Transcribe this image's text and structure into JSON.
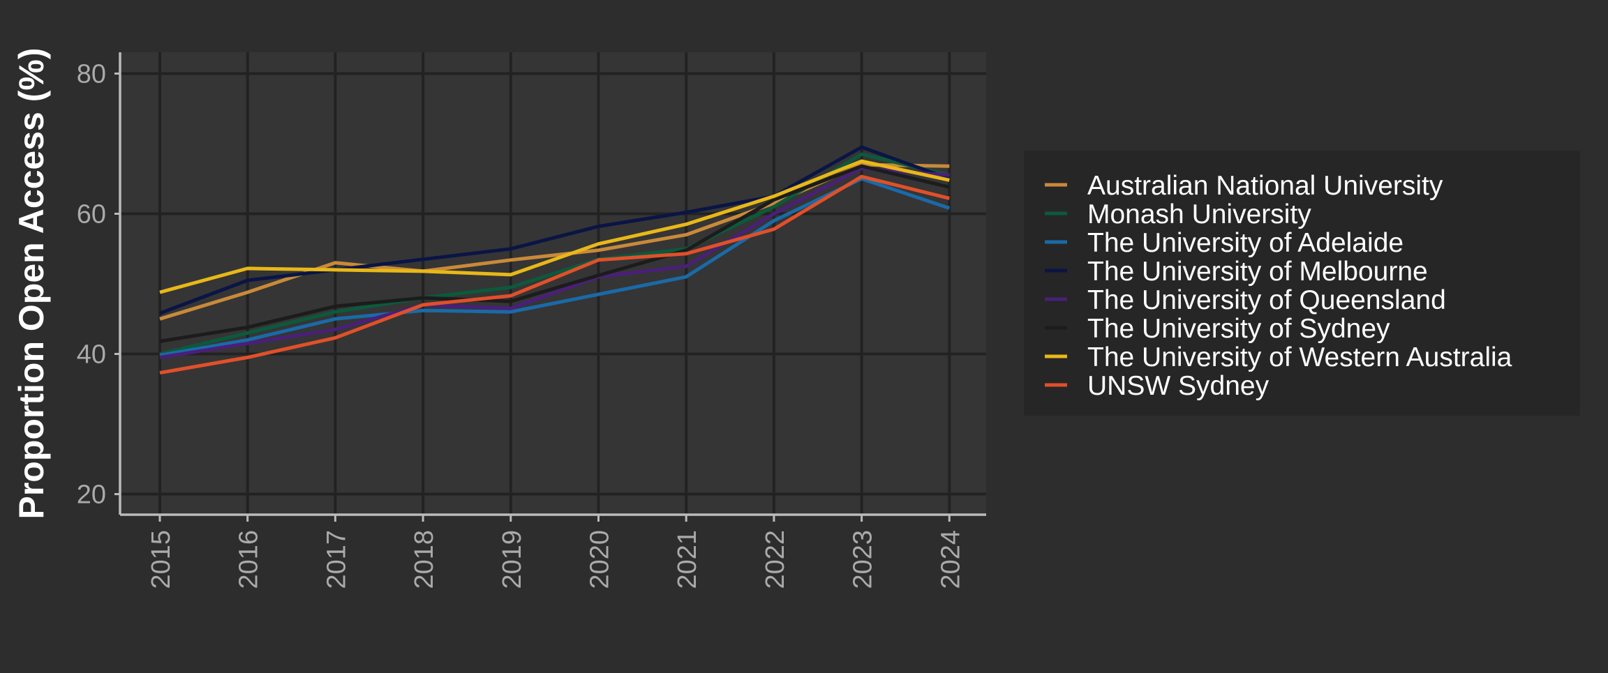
{
  "chart_data": {
    "type": "line",
    "title": "",
    "xlabel": "",
    "ylabel": "Proportion Open Access (%)",
    "x": [
      2015,
      2016,
      2017,
      2018,
      2019,
      2020,
      2021,
      2022,
      2023,
      2024
    ],
    "xticks": [
      "2015",
      "2016",
      "2017",
      "2018",
      "2019",
      "2020",
      "2021",
      "2022",
      "2023",
      "2024"
    ],
    "yticks": [
      20,
      40,
      60,
      80
    ],
    "ylim": [
      18,
      84
    ],
    "grid": true,
    "legend_position": "right",
    "colors": {
      "page_background": "#2d2d2d",
      "panel_background": "#353535",
      "legend_background": "#262626",
      "grid": "#222222",
      "axis": "#bbbbbb",
      "tick_label": "#aaaaaa",
      "axis_title": "#ffffff",
      "legend_text": "#ffffff"
    },
    "series": [
      {
        "name": "Australian National University",
        "color": "#c88a3a",
        "values": [
          45.0,
          48.8,
          53.0,
          51.8,
          53.4,
          54.8,
          57.0,
          61.5,
          67.0,
          66.8
        ]
      },
      {
        "name": "Monash University",
        "color": "#0b5a3c",
        "values": [
          40.0,
          43.0,
          46.0,
          48.0,
          49.5,
          53.5,
          55.0,
          61.0,
          68.5,
          65.5
        ]
      },
      {
        "name": "The University of Adelaide",
        "color": "#1a6aa8",
        "values": [
          39.8,
          42.0,
          45.0,
          46.2,
          46.0,
          48.5,
          51.0,
          59.0,
          65.0,
          60.8
        ]
      },
      {
        "name": "The University of Melbourne",
        "color": "#0a1545",
        "values": [
          45.8,
          50.5,
          52.0,
          53.5,
          55.0,
          58.2,
          60.2,
          62.5,
          69.5,
          65.0
        ]
      },
      {
        "name": "The University of Queensland",
        "color": "#4a1f7a",
        "values": [
          39.5,
          41.5,
          43.5,
          47.0,
          46.5,
          51.0,
          52.5,
          60.0,
          66.5,
          65.5
        ]
      },
      {
        "name": "The University of Sydney",
        "color": "#1c1c1c",
        "values": [
          41.8,
          43.8,
          46.8,
          48.0,
          47.5,
          51.2,
          54.8,
          62.0,
          66.8,
          63.8
        ]
      },
      {
        "name": "The University of Western Australia",
        "color": "#e8b818",
        "values": [
          48.8,
          52.2,
          52.0,
          51.8,
          51.3,
          55.7,
          58.5,
          62.5,
          67.5,
          64.8
        ]
      },
      {
        "name": "UNSW Sydney",
        "color": "#e0502a",
        "values": [
          37.3,
          39.5,
          42.3,
          47.0,
          48.3,
          53.4,
          54.3,
          57.8,
          65.3,
          62.2
        ]
      }
    ]
  }
}
